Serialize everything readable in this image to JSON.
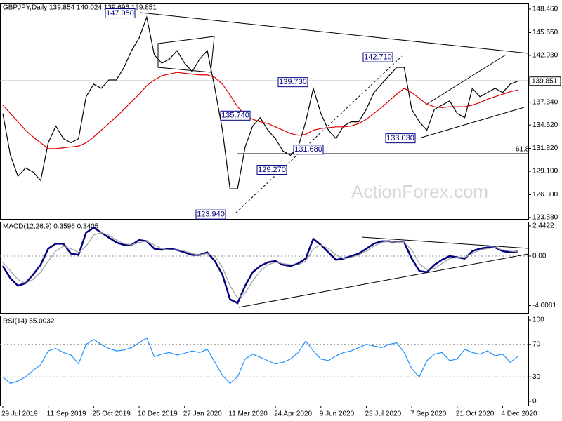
{
  "chart_data": [
    {
      "type": "line",
      "title": "GBPJPY,Daily  139.854 140.024 139.696 139.851",
      "categories": [
        "29 Jul 2019",
        null,
        null,
        null,
        null,
        null,
        "11 Sep 2019",
        null,
        null,
        null,
        null,
        null,
        "25 Oct 2019",
        null,
        null,
        null,
        null,
        null,
        "10 Dec 2019",
        null,
        null,
        null,
        null,
        null,
        "27 Jan 2020",
        null,
        null,
        null,
        null,
        null,
        "11 Mar 2020",
        null,
        null,
        null,
        null,
        null,
        "24 Apr 2020",
        null,
        null,
        null,
        null,
        null,
        "9 Jun 2020",
        null,
        null,
        null,
        null,
        null,
        "23 Jul 2020",
        null,
        null,
        null,
        null,
        null,
        "7 Sep 2020",
        null,
        null,
        null,
        null,
        null,
        "21 Oct 2020",
        null,
        null,
        null,
        null,
        null,
        "4 Dec 2020",
        null,
        null
      ],
      "series": [
        {
          "name": "GBPJPY",
          "color": "#000000",
          "values": [
            136.0,
            131,
            128.5,
            129.5,
            129,
            128,
            132.5,
            134.5,
            133,
            132.5,
            133,
            138,
            139.5,
            139,
            140,
            140,
            141.5,
            143.5,
            145,
            147.5,
            143,
            142,
            142.5,
            143.5,
            142,
            141,
            142.5,
            143.5,
            139,
            134,
            127,
            127,
            132,
            134.5,
            135.5,
            134,
            133,
            131.5,
            131,
            132,
            135,
            139,
            136,
            134,
            133,
            134.5,
            135,
            135,
            136.5,
            138.5,
            139.5,
            140.5,
            141.5,
            141.5,
            136.5,
            135,
            134,
            136.5,
            137,
            137.5,
            136,
            135.5,
            139,
            138,
            138.5,
            139,
            138.5,
            139.5,
            139.851
          ]
        },
        {
          "name": "MA",
          "color": "#e00000",
          "values": [
            137,
            136,
            135,
            134,
            133.2,
            132.5,
            131.8,
            131.8,
            131.9,
            132,
            132.1,
            132.5,
            133.2,
            134,
            134.8,
            135.6,
            136.5,
            137.4,
            138.3,
            139.3,
            140,
            140.5,
            140.7,
            140.9,
            140.8,
            140.7,
            140.6,
            140.6,
            140.3,
            139.5,
            138.2,
            136.8,
            135.8,
            135.3,
            135,
            134.8,
            134.4,
            134,
            133.6,
            133.4,
            133.5,
            134,
            134.2,
            134.3,
            134.4,
            134.4,
            134.5,
            134.8,
            135.3,
            136,
            136.7,
            137.5,
            138.3,
            139,
            138.5,
            137.8,
            137.1,
            136.8,
            136.7,
            136.8,
            136.8,
            136.8,
            137,
            137.3,
            137.7,
            138,
            138.3,
            138.6,
            138.8
          ]
        }
      ],
      "ylim": [
        123.41,
        149.21
      ],
      "yticks": [
        {
          "value": 148.46,
          "label": "148.460"
        },
        {
          "value": 145.65,
          "label": "145.650"
        },
        {
          "value": 142.93,
          "label": "142.930"
        },
        {
          "value": 137.34,
          "label": "137.340"
        },
        {
          "value": 134.62,
          "label": "134.620"
        },
        {
          "value": 131.82,
          "label": "131.820"
        },
        {
          "value": 129.1,
          "label": "129.100"
        },
        {
          "value": 126.3,
          "label": "126.300"
        },
        {
          "value": 123.58,
          "label": "123.580"
        }
      ],
      "price_label": {
        "value": 139.851,
        "label": "139.851"
      },
      "annotations": [
        {
          "value": 147.95,
          "label": "147.950"
        },
        {
          "value": 142.71,
          "label": "142.710"
        },
        {
          "value": 139.73,
          "label": "139.730"
        },
        {
          "value": 135.74,
          "label": "135.740"
        },
        {
          "value": 133.03,
          "label": "133.030"
        },
        {
          "value": 131.68,
          "label": "131.680"
        },
        {
          "value": 129.27,
          "label": "129.270"
        },
        {
          "value": 123.94,
          "label": "123.940"
        }
      ],
      "fib_label": "61.8",
      "watermark": "ActionForex.com"
    },
    {
      "type": "line",
      "title": "MACD(12,26,9) 0.3596 0.3405",
      "series": [
        {
          "name": "MACD",
          "color": "#000080",
          "values": [
            -0.8,
            -1.8,
            -2.4,
            -2.2,
            -1.5,
            -0.7,
            0.6,
            1.0,
            1.0,
            0.2,
            0.1,
            1.9,
            2.3,
            1.9,
            1.5,
            1.1,
            0.9,
            0.9,
            1.3,
            1.2,
            0.6,
            0.5,
            0.6,
            0.5,
            0.3,
            0.1,
            0.1,
            0.3,
            -0.4,
            -1.5,
            -3.5,
            -3.8,
            -2.4,
            -1.3,
            -0.8,
            -0.5,
            -0.4,
            -0.7,
            -0.8,
            -0.6,
            -0.2,
            1.4,
            0.9,
            0.3,
            -0.3,
            -0.2,
            0,
            0.2,
            0.6,
            1.0,
            1.2,
            1.2,
            1.1,
            1.1,
            -0.2,
            -1.2,
            -1.3,
            -0.7,
            -0.3,
            0,
            -0.1,
            -0.2,
            0.4,
            0.6,
            0.7,
            0.7,
            0.4,
            0.3,
            0.3596
          ]
        },
        {
          "name": "Signal",
          "color": "#a0a0a0",
          "values": [
            -0.5,
            -1.2,
            -1.9,
            -2.2,
            -1.9,
            -1.3,
            -0.4,
            0.4,
            0.8,
            0.6,
            0.3,
            0.8,
            1.7,
            1.9,
            1.7,
            1.3,
            1.0,
            0.9,
            1.1,
            1.2,
            0.9,
            0.6,
            0.5,
            0.5,
            0.4,
            0.2,
            0.1,
            0.2,
            0,
            -0.9,
            -2.4,
            -3.4,
            -3.0,
            -2.0,
            -1.2,
            -0.7,
            -0.5,
            -0.6,
            -0.7,
            -0.7,
            -0.4,
            0.6,
            0.9,
            0.6,
            0.1,
            -0.2,
            -0.1,
            0.1,
            0.4,
            0.8,
            1.1,
            1.2,
            1.1,
            1.1,
            0.5,
            -0.6,
            -1.1,
            -1.0,
            -0.6,
            -0.2,
            -0.1,
            -0.1,
            0.2,
            0.5,
            0.6,
            0.7,
            0.5,
            0.4,
            0.3405
          ]
        }
      ],
      "ylim": [
        -4.6,
        2.78
      ],
      "yticks": [
        2.4422,
        {
          "value": 0,
          "label": "0.00"
        },
        -4.0081
      ]
    },
    {
      "type": "line",
      "title": "RSI(14) 55.0032",
      "series": [
        {
          "name": "RSI",
          "color": "#1e90ff",
          "values": [
            30,
            22,
            25,
            30,
            38,
            45,
            62,
            65,
            60,
            57,
            46,
            70,
            76,
            70,
            65,
            62,
            63,
            66,
            72,
            78,
            55,
            58,
            60,
            57,
            59,
            62,
            60,
            64,
            48,
            32,
            22,
            30,
            52,
            58,
            54,
            50,
            46,
            48,
            52,
            60,
            74,
            62,
            52,
            50,
            56,
            60,
            62,
            66,
            70,
            68,
            66,
            70,
            72,
            60,
            40,
            30,
            50,
            58,
            60,
            50,
            52,
            64,
            60,
            58,
            62,
            56,
            58,
            48,
            55.0032
          ]
        }
      ],
      "ylim": [
        -5.2,
        105.2
      ],
      "yticks": [
        100,
        70,
        30,
        0
      ]
    }
  ]
}
